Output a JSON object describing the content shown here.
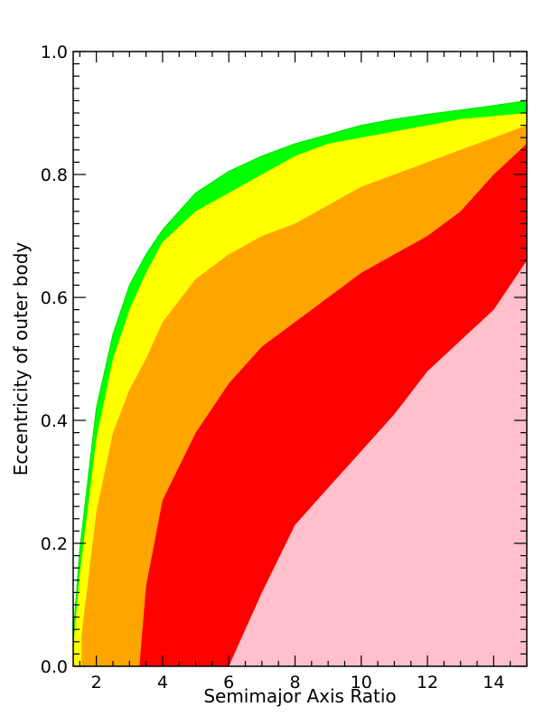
{
  "chart_data": {
    "type": "contour",
    "xlabel": "Semimajor Axis Ratio",
    "ylabel": "Eccentricity of outer body",
    "xlim": [
      1.3,
      15
    ],
    "ylim": [
      0,
      1
    ],
    "x_ticks": [
      2,
      4,
      6,
      8,
      10,
      12,
      14
    ],
    "x_tick_labels": [
      "2",
      "4",
      "6",
      "8",
      "10",
      "12",
      "14"
    ],
    "y_ticks": [
      0,
      0.2,
      0.4,
      0.6,
      0.8,
      1.0
    ],
    "y_tick_labels": [
      "0.0",
      "0.2",
      "0.4",
      "0.6",
      "0.8",
      "1.0"
    ],
    "grid": false,
    "boundary_curve": {
      "x": [
        1.3,
        1.5,
        2,
        2.5,
        3,
        3.5,
        4,
        5,
        6,
        7,
        8,
        9,
        10,
        11,
        12,
        13,
        14,
        15
      ],
      "e": [
        0.05,
        0.19,
        0.42,
        0.54,
        0.62,
        0.67,
        0.71,
        0.77,
        0.805,
        0.83,
        0.85,
        0.865,
        0.88,
        0.89,
        0.898,
        0.905,
        0.912,
        0.92
      ]
    },
    "regions": [
      {
        "name": "green",
        "color": "#00ff00",
        "x": [
          1.3,
          1.5,
          2,
          2.5,
          3,
          3.5,
          4,
          5,
          6,
          7,
          8,
          9,
          10,
          11,
          12,
          13,
          14,
          15
        ],
        "e_upper": [
          0.05,
          0.19,
          0.42,
          0.54,
          0.62,
          0.67,
          0.71,
          0.77,
          0.805,
          0.83,
          0.85,
          0.865,
          0.88,
          0.89,
          0.898,
          0.905,
          0.912,
          0.92
        ]
      },
      {
        "name": "yellow",
        "color": "#ffff00",
        "x": [
          1.3,
          1.5,
          2,
          2.5,
          3,
          3.5,
          4,
          5,
          6,
          7,
          8,
          9,
          10,
          11,
          12,
          13,
          14,
          15
        ],
        "e_upper": [
          0.03,
          0.15,
          0.37,
          0.5,
          0.58,
          0.64,
          0.69,
          0.74,
          0.77,
          0.8,
          0.83,
          0.85,
          0.86,
          0.87,
          0.88,
          0.89,
          0.895,
          0.9
        ]
      },
      {
        "name": "orange",
        "color": "#ffa500",
        "x": [
          1.55,
          2,
          2.5,
          3,
          3.5,
          4,
          5,
          6,
          7,
          8,
          9,
          10,
          11,
          12,
          13,
          14,
          15
        ],
        "e_upper": [
          0.05,
          0.25,
          0.38,
          0.45,
          0.5,
          0.56,
          0.63,
          0.67,
          0.7,
          0.72,
          0.75,
          0.78,
          0.8,
          0.82,
          0.84,
          0.86,
          0.88
        ]
      },
      {
        "name": "red",
        "color": "#ff0000",
        "x": [
          3.3,
          3.5,
          4,
          5,
          6,
          7,
          8,
          9,
          10,
          11,
          12,
          13,
          14,
          15
        ],
        "e_upper": [
          0.0,
          0.13,
          0.27,
          0.38,
          0.46,
          0.52,
          0.56,
          0.6,
          0.64,
          0.67,
          0.7,
          0.74,
          0.8,
          0.85
        ]
      },
      {
        "name": "pink",
        "color": "#ffc0cb",
        "x": [
          6,
          7,
          8,
          9,
          10,
          11,
          12,
          13,
          14,
          15
        ],
        "e_upper": [
          0.0,
          0.12,
          0.23,
          0.29,
          0.35,
          0.41,
          0.48,
          0.53,
          0.58,
          0.66
        ]
      }
    ]
  }
}
